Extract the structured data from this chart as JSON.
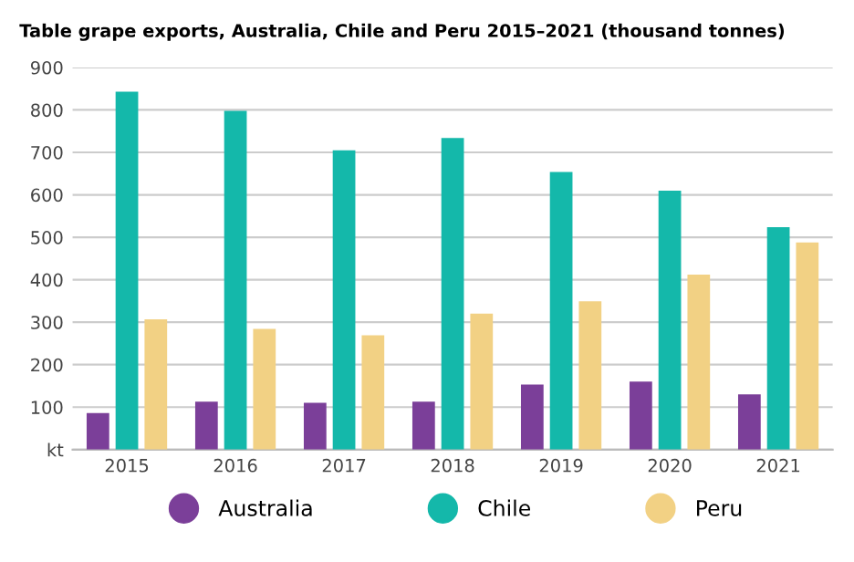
{
  "chart_data": {
    "type": "bar",
    "title": "Table grape exports, Australia, Chile and Peru 2015–2021 (thousand tonnes)",
    "categories": [
      "2015",
      "2016",
      "2017",
      "2018",
      "2019",
      "2020",
      "2021"
    ],
    "series": [
      {
        "name": "Australia",
        "color": "#7b3f99",
        "values": [
          86,
          113,
          110,
          113,
          153,
          160,
          130
        ]
      },
      {
        "name": "Chile",
        "color": "#14b8aa",
        "values": [
          843,
          798,
          705,
          734,
          654,
          610,
          524
        ]
      },
      {
        "name": "Peru",
        "color": "#f2d184",
        "values": [
          307,
          284,
          269,
          320,
          349,
          412,
          488
        ]
      }
    ],
    "ylim": [
      0,
      900
    ],
    "yticks": [
      {
        "value": 0,
        "label": "kt"
      },
      100,
      200,
      300,
      400,
      500,
      600,
      700,
      800,
      900
    ],
    "grid": "y",
    "legend": "bottom"
  }
}
